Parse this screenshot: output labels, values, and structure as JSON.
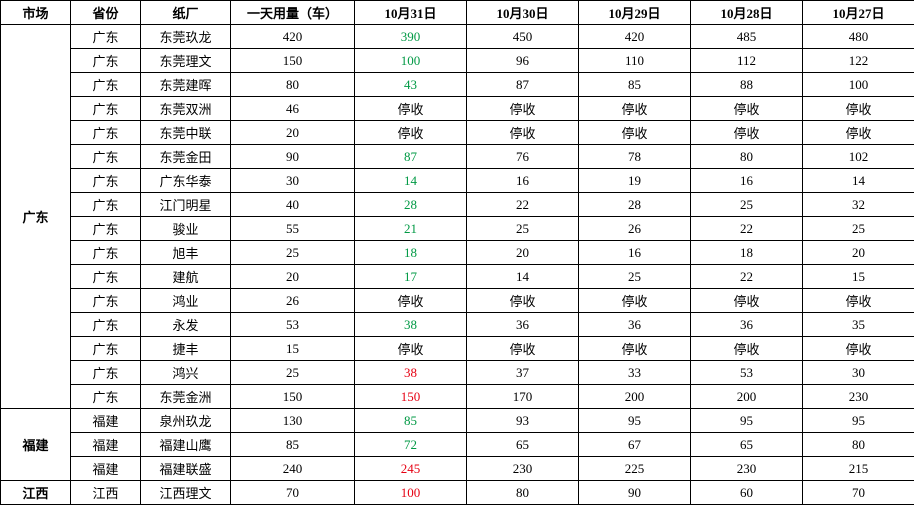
{
  "columns": [
    "市场",
    "省份",
    "纸厂",
    "一天用量（车）",
    "10月31日",
    "10月30日",
    "10月29日",
    "10月28日",
    "10月27日"
  ],
  "groups": [
    {
      "market": "广东",
      "rows": [
        {
          "province": "广东",
          "mill": "东莞玖龙",
          "daily": "420",
          "d31": {
            "v": "390",
            "c": "green"
          },
          "d30": "450",
          "d29": "420",
          "d28": "485",
          "d27": "480"
        },
        {
          "province": "广东",
          "mill": "东莞理文",
          "daily": "150",
          "d31": {
            "v": "100",
            "c": "green"
          },
          "d30": "96",
          "d29": "110",
          "d28": "112",
          "d27": "122"
        },
        {
          "province": "广东",
          "mill": "东莞建晖",
          "daily": "80",
          "d31": {
            "v": "43",
            "c": "green"
          },
          "d30": "87",
          "d29": "85",
          "d28": "88",
          "d27": "100"
        },
        {
          "province": "广东",
          "mill": "东莞双洲",
          "daily": "46",
          "d31": "停收",
          "d30": "停收",
          "d29": "停收",
          "d28": "停收",
          "d27": "停收"
        },
        {
          "province": "广东",
          "mill": "东莞中联",
          "daily": "20",
          "d31": "停收",
          "d30": "停收",
          "d29": "停收",
          "d28": "停收",
          "d27": "停收"
        },
        {
          "province": "广东",
          "mill": "东莞金田",
          "daily": "90",
          "d31": {
            "v": "87",
            "c": "green"
          },
          "d30": "76",
          "d29": "78",
          "d28": "80",
          "d27": "102"
        },
        {
          "province": "广东",
          "mill": "广东华泰",
          "daily": "30",
          "d31": {
            "v": "14",
            "c": "green"
          },
          "d30": "16",
          "d29": "19",
          "d28": "16",
          "d27": "14"
        },
        {
          "province": "广东",
          "mill": "江门明星",
          "daily": "40",
          "d31": {
            "v": "28",
            "c": "green"
          },
          "d30": "22",
          "d29": "28",
          "d28": "25",
          "d27": "32"
        },
        {
          "province": "广东",
          "mill": "骏业",
          "daily": "55",
          "d31": {
            "v": "21",
            "c": "green"
          },
          "d30": "25",
          "d29": "26",
          "d28": "22",
          "d27": "25"
        },
        {
          "province": "广东",
          "mill": "旭丰",
          "daily": "25",
          "d31": {
            "v": "18",
            "c": "green"
          },
          "d30": "20",
          "d29": "16",
          "d28": "18",
          "d27": "20"
        },
        {
          "province": "广东",
          "mill": "建航",
          "daily": "20",
          "d31": {
            "v": "17",
            "c": "green"
          },
          "d30": "14",
          "d29": "25",
          "d28": "22",
          "d27": "15"
        },
        {
          "province": "广东",
          "mill": "鸿业",
          "daily": "26",
          "d31": "停收",
          "d30": "停收",
          "d29": "停收",
          "d28": "停收",
          "d27": "停收"
        },
        {
          "province": "广东",
          "mill": "永发",
          "daily": "53",
          "d31": {
            "v": "38",
            "c": "green"
          },
          "d30": "36",
          "d29": "36",
          "d28": "36",
          "d27": "35"
        },
        {
          "province": "广东",
          "mill": "捷丰",
          "daily": "15",
          "d31": "停收",
          "d30": "停收",
          "d29": "停收",
          "d28": "停收",
          "d27": "停收"
        },
        {
          "province": "广东",
          "mill": "鸿兴",
          "daily": "25",
          "d31": {
            "v": "38",
            "c": "red"
          },
          "d30": "37",
          "d29": "33",
          "d28": "53",
          "d27": "30"
        },
        {
          "province": "广东",
          "mill": "东莞金洲",
          "daily": "150",
          "d31": {
            "v": "150",
            "c": "red"
          },
          "d30": "170",
          "d29": "200",
          "d28": "200",
          "d27": "230"
        }
      ]
    },
    {
      "market": "福建",
      "rows": [
        {
          "province": "福建",
          "mill": "泉州玖龙",
          "daily": "130",
          "d31": {
            "v": "85",
            "c": "green"
          },
          "d30": "93",
          "d29": "95",
          "d28": "95",
          "d27": "95"
        },
        {
          "province": "福建",
          "mill": "福建山鹰",
          "daily": "85",
          "d31": {
            "v": "72",
            "c": "green"
          },
          "d30": "65",
          "d29": "67",
          "d28": "65",
          "d27": "80"
        },
        {
          "province": "福建",
          "mill": "福建联盛",
          "daily": "240",
          "d31": {
            "v": "245",
            "c": "red"
          },
          "d30": "230",
          "d29": "225",
          "d28": "230",
          "d27": "215"
        }
      ]
    },
    {
      "market": "江西",
      "rows": [
        {
          "province": "江西",
          "mill": "江西理文",
          "daily": "70",
          "d31": {
            "v": "100",
            "c": "red"
          },
          "d30": "80",
          "d29": "90",
          "d28": "60",
          "d27": "70"
        }
      ]
    }
  ]
}
